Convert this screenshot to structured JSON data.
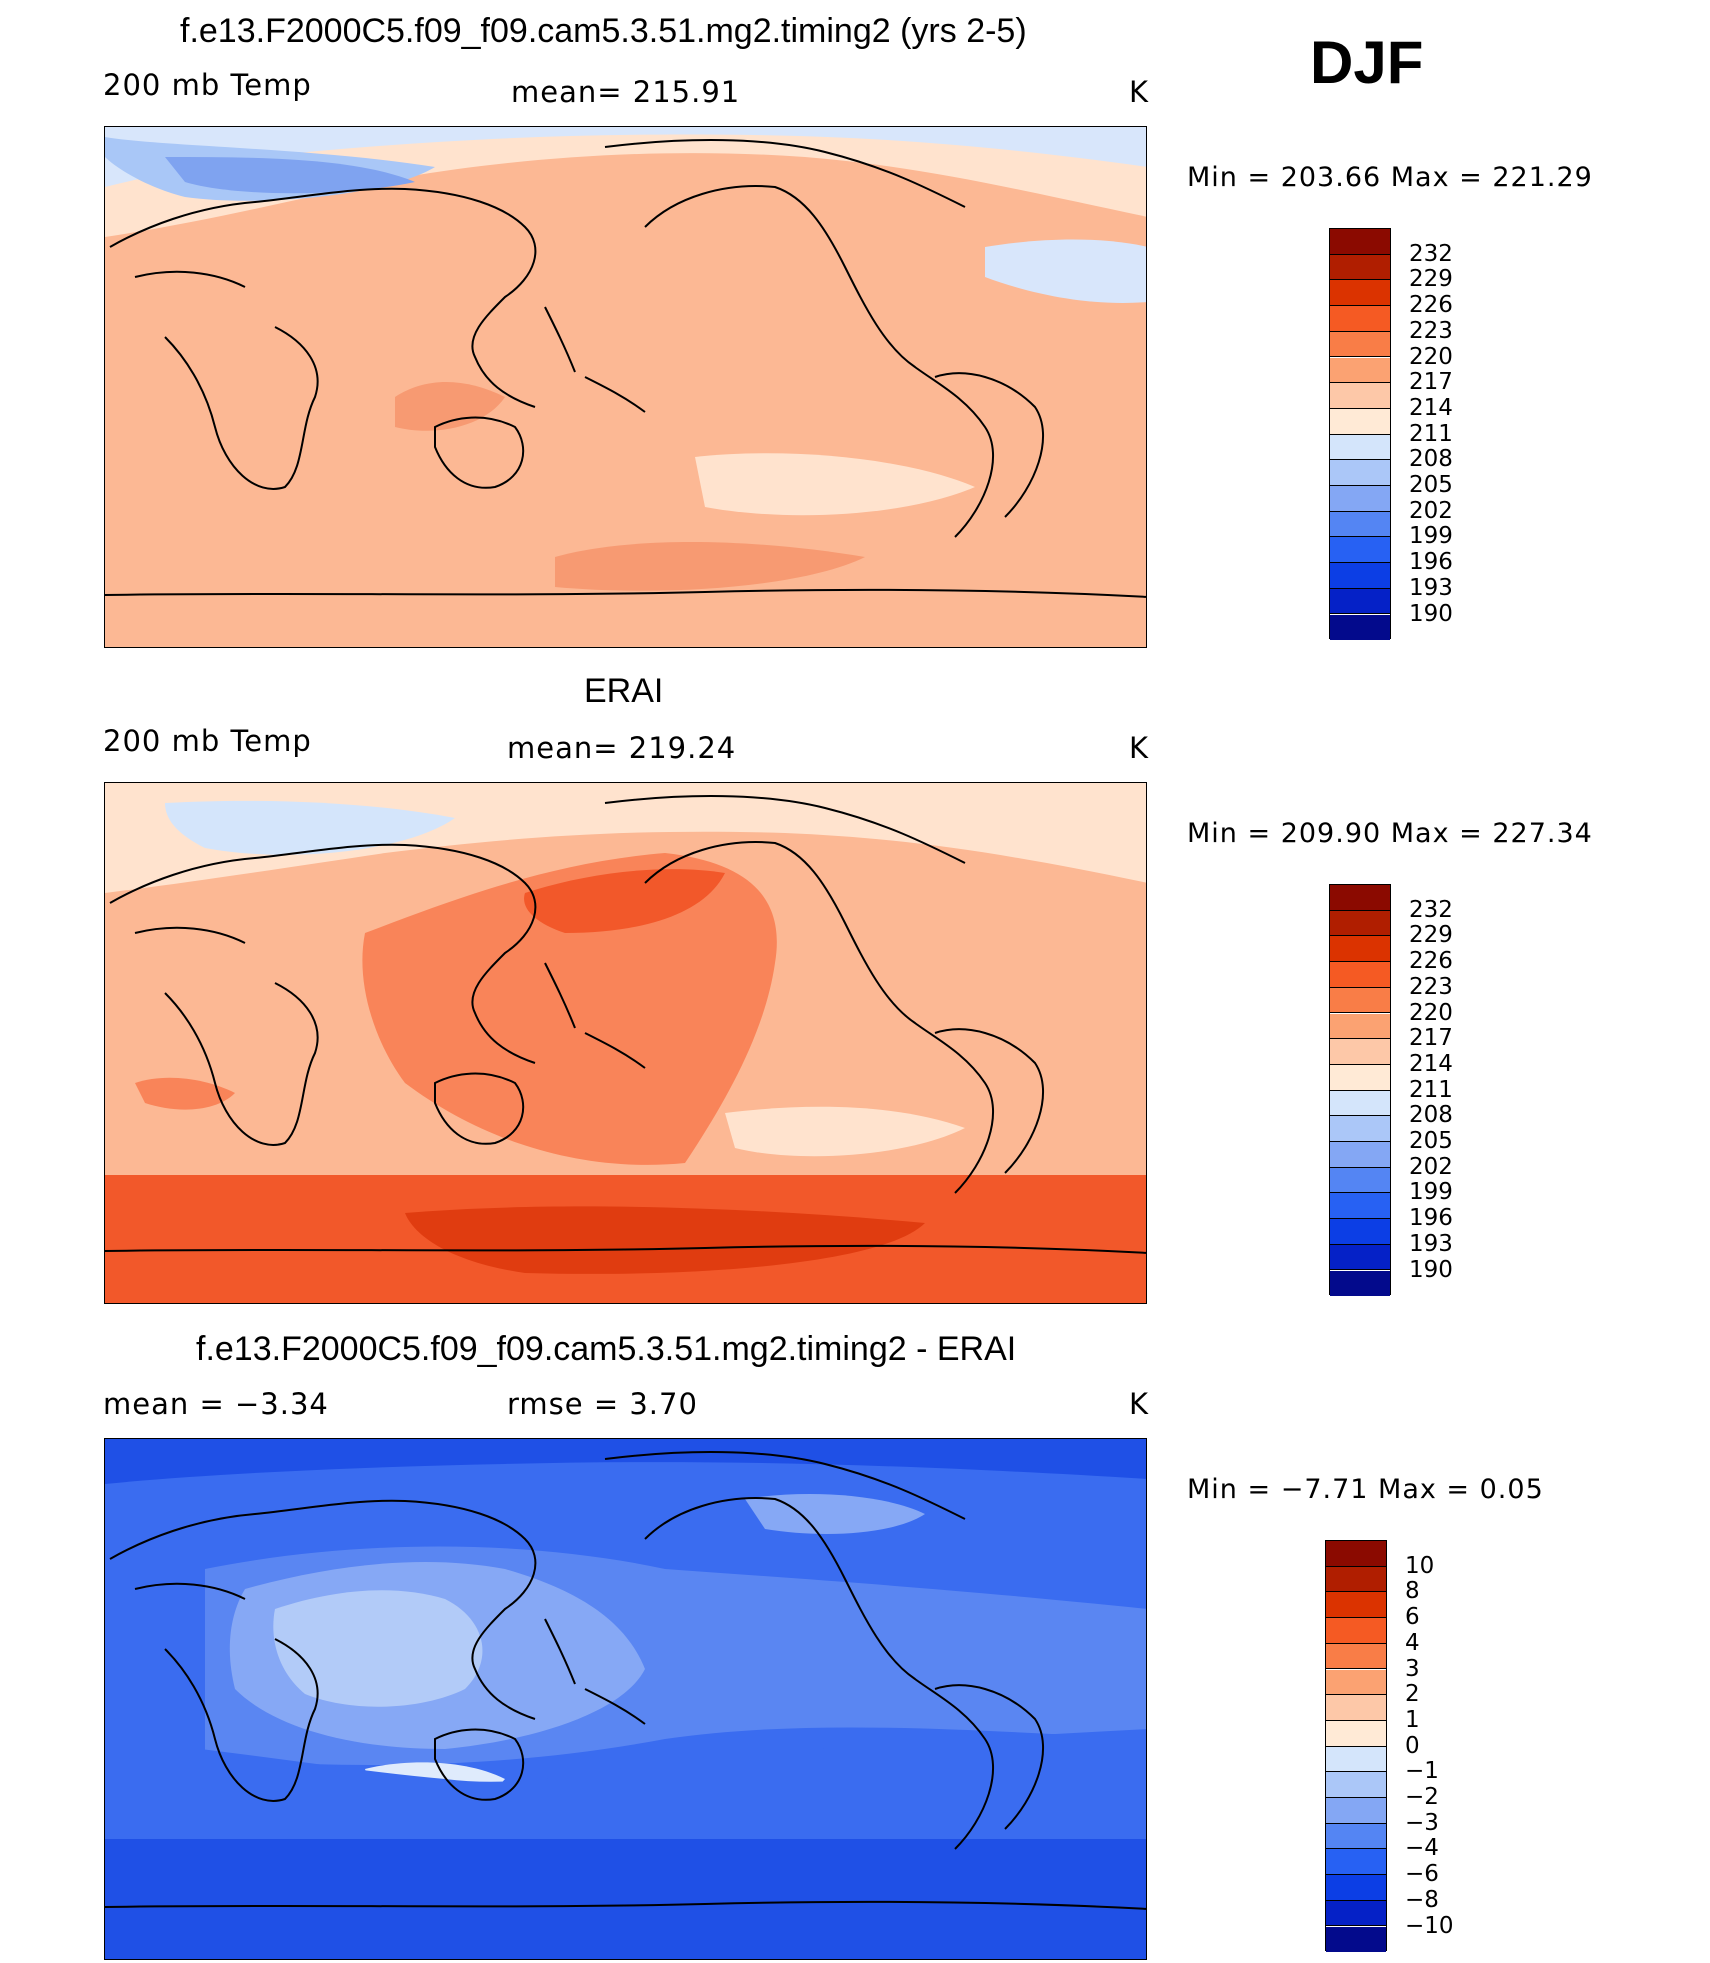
{
  "season": "DJF",
  "units": "K",
  "panels": [
    {
      "id": "model",
      "title": "f.e13.F2000C5.f09_f09.cam5.3.51.mg2.timing2 (yrs 2-5)",
      "left_label": "200 mb Temp",
      "center_label": "mean=  215.91",
      "right_label": "K",
      "minmax": "Min  =  203.66  Max  =  221.29",
      "legend": {
        "labels": [
          "232",
          "229",
          "226",
          "223",
          "220",
          "217",
          "214",
          "211",
          "208",
          "205",
          "202",
          "199",
          "196",
          "193",
          "190"
        ],
        "colors": [
          "#8b0a00",
          "#b01e00",
          "#db3300",
          "#f55a23",
          "#f97d47",
          "#fba272",
          "#fdc8a8",
          "#ffead6",
          "#d4e5fb",
          "#abc7f8",
          "#84a7f4",
          "#5485f3",
          "#2761f3",
          "#0c3ee5",
          "#0521c7",
          "#030a8c"
        ]
      },
      "map_fill": [
        "#ffe3ce",
        "#fcb894",
        "#f79a72",
        "#d8e6fb",
        "#a9c7f7",
        "#7fa3f0"
      ]
    },
    {
      "id": "obs",
      "title": "ERAI",
      "left_label": "200 mb Temp",
      "center_label": "mean=  219.24",
      "right_label": "K",
      "minmax": "Min  =  209.90  Max  =  227.34",
      "legend": {
        "labels": [
          "232",
          "229",
          "226",
          "223",
          "220",
          "217",
          "214",
          "211",
          "208",
          "205",
          "202",
          "199",
          "196",
          "193",
          "190"
        ],
        "colors": [
          "#8b0a00",
          "#b01e00",
          "#db3300",
          "#f55a23",
          "#f97d47",
          "#fba272",
          "#fdc8a8",
          "#ffead6",
          "#d4e5fb",
          "#abc7f8",
          "#84a7f4",
          "#5485f3",
          "#2761f3",
          "#0c3ee5",
          "#0521c7",
          "#030a8c"
        ]
      },
      "map_fill": [
        "#ffe3ce",
        "#fcb894",
        "#f98459",
        "#f2582a",
        "#e03c10",
        "#d4e5fb"
      ]
    },
    {
      "id": "diff",
      "title": "f.e13.F2000C5.f09_f09.cam5.3.51.mg2.timing2 - ERAI",
      "left_label": "mean  =    −3.34",
      "center_label": "rmse  =     3.70",
      "right_label": "K",
      "minmax": "Min  =    −7.71  Max  =      0.05",
      "legend": {
        "labels": [
          "10",
          "8",
          "6",
          "4",
          "3",
          "2",
          "1",
          "0",
          "−1",
          "−2",
          "−3",
          "−4",
          "−6",
          "−8",
          "−10"
        ],
        "colors": [
          "#8b0a00",
          "#b01e00",
          "#db3300",
          "#f55a23",
          "#f97d47",
          "#fba272",
          "#fdc8a8",
          "#ffead6",
          "#d4e5fb",
          "#abc7f8",
          "#84a7f4",
          "#5485f3",
          "#2761f3",
          "#0c3ee5",
          "#0521c7",
          "#030a8c"
        ]
      },
      "map_fill": [
        "#3a6cf0",
        "#5a86f2",
        "#86a8f5",
        "#b2cbf8",
        "#dfebfc",
        "#1f50e6"
      ]
    }
  ]
}
